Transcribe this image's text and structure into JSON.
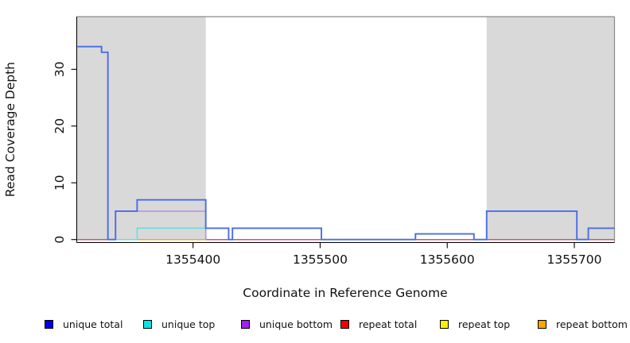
{
  "chart_data": {
    "type": "line",
    "subtype": "step",
    "title": "",
    "xlabel": "Coordinate in Reference Genome",
    "ylabel": "Read Coverage Depth",
    "x_ticks": [
      1355400,
      1355500,
      1355600,
      1355700
    ],
    "y_ticks": [
      0,
      10,
      20,
      30
    ],
    "xlim": [
      1355309,
      1355732
    ],
    "ylim": [
      0,
      39.5
    ],
    "grid": false,
    "legend_position": "bottom",
    "background_shading": {
      "color": "#d9d9d9",
      "border_color": "#8a8a8a",
      "regions": [
        [
          1355309,
          1355410
        ],
        [
          1355631,
          1355732
        ]
      ]
    },
    "series": [
      {
        "name": "unique-total",
        "label": "unique total",
        "color": "#0000ee",
        "line_color": "#4b6ce6",
        "end_x": 1355732,
        "points": [
          [
            1355309,
            34
          ],
          [
            1355328,
            33
          ],
          [
            1355333,
            0
          ],
          [
            1355339,
            5
          ],
          [
            1355356,
            7
          ],
          [
            1355410,
            2
          ],
          [
            1355428,
            0
          ],
          [
            1355431,
            2
          ],
          [
            1355501,
            0
          ],
          [
            1355575,
            1
          ],
          [
            1355621,
            0
          ],
          [
            1355631,
            5
          ],
          [
            1355702,
            0
          ],
          [
            1355711,
            2
          ]
        ]
      },
      {
        "name": "unique-top",
        "label": "unique top",
        "color": "#00e5e5",
        "line_color": "#63dede",
        "end_x": 1355410,
        "points": [
          [
            1355339,
            0
          ],
          [
            1355356,
            2
          ],
          [
            1355410,
            0
          ]
        ]
      },
      {
        "name": "unique-bottom",
        "label": "unique bottom",
        "color": "#a020f0",
        "line_color": "#b98de8",
        "end_x": 1355410,
        "points": [
          [
            1355339,
            5
          ],
          [
            1355410,
            0
          ]
        ]
      },
      {
        "name": "repeat-total",
        "label": "repeat total",
        "color": "#ee0000",
        "line_color": "#d8506e",
        "end_x": 1355732,
        "points": [
          [
            1355309,
            0
          ]
        ]
      },
      {
        "name": "repeat-top",
        "label": "repeat top",
        "color": "#ffee00",
        "line_color": "#ffee00",
        "end_x": null,
        "points": []
      },
      {
        "name": "repeat-bottom",
        "label": "repeat bottom",
        "color": "#ffa500",
        "line_color": "#ffa028",
        "end_x": 1355410,
        "points": [
          [
            1355339,
            0
          ]
        ]
      }
    ]
  }
}
